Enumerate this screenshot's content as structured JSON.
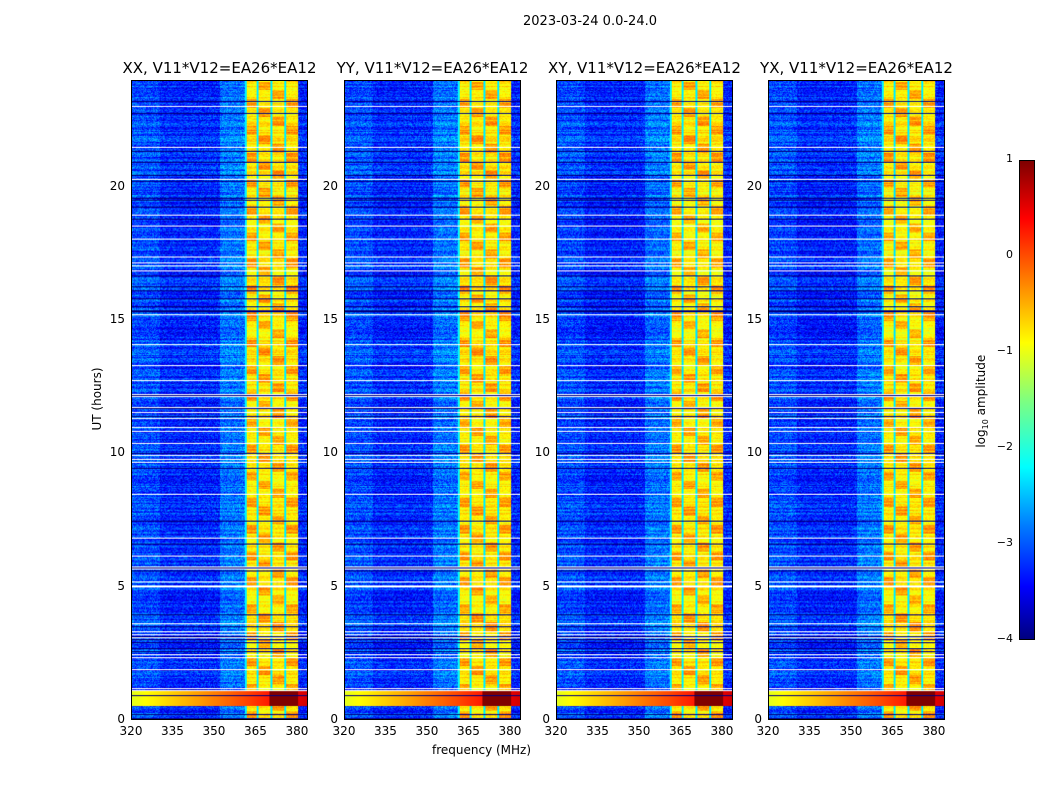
{
  "suptitle": "2023-03-24 0.0-24.0",
  "chart_data": {
    "type": "heatmap",
    "title": "2023-03-24 0.0-24.0",
    "xlabel": "frequency (MHz)",
    "ylabel": "UT (hours)",
    "xlim": [
      320,
      384
    ],
    "ylim": [
      0,
      24
    ],
    "xticks": [
      "320",
      "335",
      "350",
      "365",
      "380"
    ],
    "yticks": [
      "0",
      "5",
      "10",
      "15",
      "20"
    ],
    "panels": [
      {
        "title": "XX, V11*V12=EA26*EA12"
      },
      {
        "title": "YY, V11*V12=EA26*EA12"
      },
      {
        "title": "XY, V11*V12=EA26*EA12"
      },
      {
        "title": "YX, V11*V12=EA26*EA12"
      }
    ],
    "colorbar": {
      "label_main": "log",
      "label_sub": "10",
      "label_tail": " amplitude",
      "range": [
        -4,
        1
      ],
      "ticks": [
        "1",
        "0",
        "−1",
        "−2",
        "−3",
        "−4"
      ],
      "colormap": "jet"
    },
    "background_level": -3.2,
    "band_level": -0.8,
    "band_subbands_mhz": [
      [
        361,
        365.5
      ],
      [
        365.5,
        370.5
      ],
      [
        370.5,
        375.5
      ],
      [
        375.5,
        380.5
      ]
    ],
    "strong_rfi_hours": [
      0.5,
      1.1
    ]
  }
}
